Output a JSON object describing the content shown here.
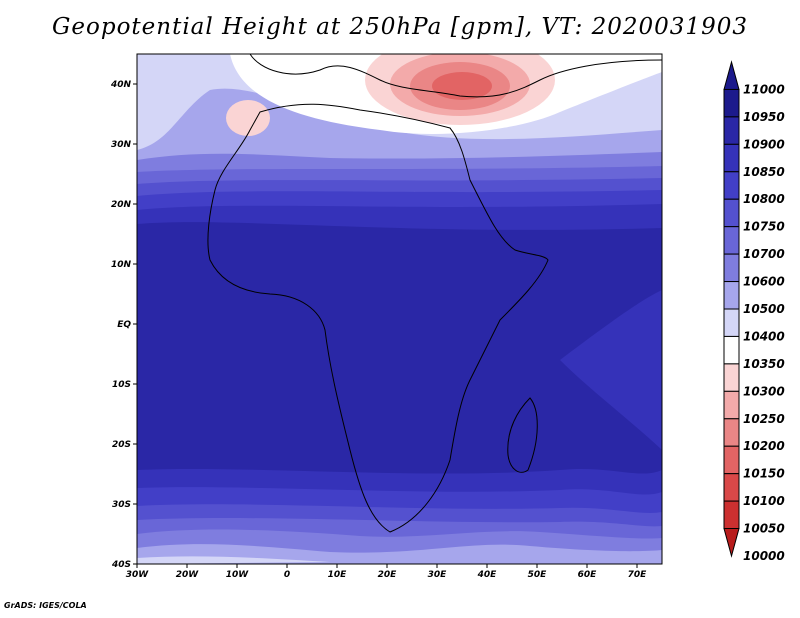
{
  "title": "Geopotential Height at 250hPa [gpm], VT: 2020031903",
  "credit": "GrADS: IGES/COLA",
  "map": {
    "lon_range": [
      -30,
      75
    ],
    "lat_range": [
      -40,
      45
    ],
    "lon_ticks": [
      {
        "value": -30,
        "label": "30W"
      },
      {
        "value": -20,
        "label": "20W"
      },
      {
        "value": -10,
        "label": "10W"
      },
      {
        "value": 0,
        "label": "0"
      },
      {
        "value": 10,
        "label": "10E"
      },
      {
        "value": 20,
        "label": "20E"
      },
      {
        "value": 30,
        "label": "30E"
      },
      {
        "value": 40,
        "label": "40E"
      },
      {
        "value": 50,
        "label": "50E"
      },
      {
        "value": 60,
        "label": "60E"
      },
      {
        "value": 70,
        "label": "70E"
      }
    ],
    "lat_ticks": [
      {
        "value": 40,
        "label": "40N"
      },
      {
        "value": 30,
        "label": "30N"
      },
      {
        "value": 20,
        "label": "20N"
      },
      {
        "value": 10,
        "label": "10N"
      },
      {
        "value": 0,
        "label": "EQ"
      },
      {
        "value": -10,
        "label": "10S"
      },
      {
        "value": -20,
        "label": "20S"
      },
      {
        "value": -30,
        "label": "30S"
      },
      {
        "value": -40,
        "label": "40S"
      }
    ]
  },
  "colorbar": {
    "levels": [
      "11000",
      "10950",
      "10900",
      "10850",
      "10800",
      "10750",
      "10700",
      "10600",
      "10500",
      "10400",
      "10350",
      "10300",
      "10250",
      "10200",
      "10150",
      "10100",
      "10050",
      "10000"
    ],
    "colors": [
      "#1c1a8c",
      "#2a27a6",
      "#3532b9",
      "#423fc7",
      "#5451cf",
      "#6966d7",
      "#7f7ddf",
      "#a6a6ec",
      "#d4d6f7",
      "#ffffff",
      "#fad4d4",
      "#f3aaaa",
      "#ea8686",
      "#e26464",
      "#d94848",
      "#cc3030",
      "#b81c1c"
    ]
  }
}
